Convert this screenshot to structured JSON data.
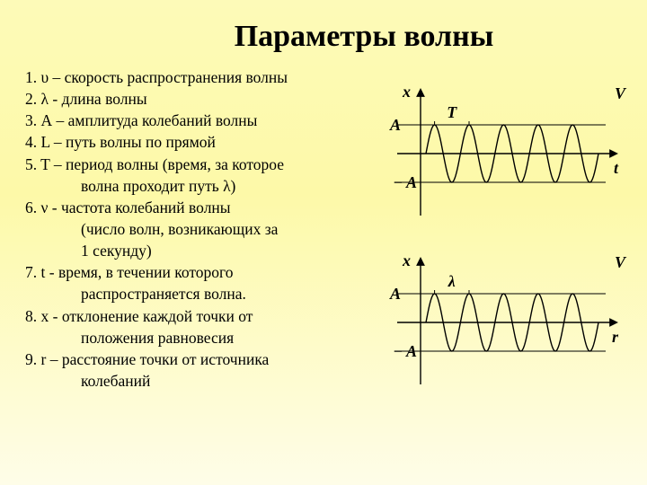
{
  "title": "Параметры волны",
  "items": [
    {
      "n": "1.",
      "sym": "υ",
      "text": " – скорость распространения волны"
    },
    {
      "n": "2.",
      "sym": "λ",
      "text": "  - длина волны"
    },
    {
      "n": "3.",
      "sym": "А",
      "text": " – амплитуда колебаний волны"
    },
    {
      "n": "4.",
      "sym": "L",
      "text": " – путь волны по прямой"
    },
    {
      "n": "5.",
      "sym": "T",
      "text": " – период волны (время, за которое",
      "cont": [
        "волна проходит путь λ)"
      ]
    },
    {
      "n": "6.",
      "sym": "ν",
      "text": "  - частота колебаний волны",
      "cont": [
        "(число волн, возникающих за",
        "1 секунду)"
      ]
    },
    {
      "n": "7.",
      "sym": "t",
      "text": "  - время, в течении которого",
      "cont": [
        "распространяется волна."
      ]
    },
    {
      "n": "8.",
      "sym": "х",
      "text": "  - отклонение каждой точки от",
      "cont": [
        "положения равновесия"
      ]
    },
    {
      "n": "9.",
      "sym": "r",
      "text": " – расстояние точки от источника",
      "cont": [
        "колебаний"
      ]
    }
  ],
  "diagram1": {
    "y_label": "x",
    "x_label": "t",
    "v_label": "V",
    "a_label": "A",
    "neg_a_label": "− A",
    "top_label": "T",
    "amplitude": 32,
    "cycles": 5,
    "axis_color": "#000000",
    "wave_color": "#000000",
    "stroke_width": 1.4
  },
  "diagram2": {
    "y_label": "x",
    "x_label": "r",
    "v_label": "V",
    "a_label": "A",
    "neg_a_label": "− A",
    "top_label": "λ",
    "amplitude": 32,
    "cycles": 5,
    "axis_color": "#000000",
    "wave_color": "#000000",
    "stroke_width": 1.4
  }
}
